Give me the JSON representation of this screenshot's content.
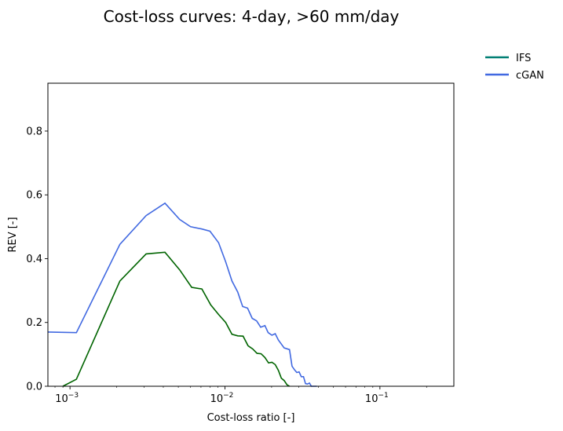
{
  "chart_data": {
    "type": "line",
    "title": "Cost-loss curves: 4-day, >60 mm/day",
    "xlabel": "Cost-loss ratio [-]",
    "ylabel": "REV [-]",
    "xscale": "log",
    "xlim": [
      0.00072,
      0.3
    ],
    "ylim": [
      0.0,
      0.95
    ],
    "grid": false,
    "legend_position": "outside top-right",
    "x_ticks": [
      {
        "base": "10",
        "exp": "−3",
        "value": 0.001
      },
      {
        "base": "10",
        "exp": "−2",
        "value": 0.01
      },
      {
        "base": "10",
        "exp": "−1",
        "value": 0.1
      }
    ],
    "y_ticks": [
      "0.0",
      "0.2",
      "0.4",
      "0.6",
      "0.8"
    ],
    "legend": [
      {
        "label": "IFS",
        "color": "#007f73"
      },
      {
        "label": "cGAN",
        "color": "#4169e1"
      }
    ],
    "series": [
      {
        "name": "cGAN",
        "color": "#4169e1",
        "x": [
          0.00072,
          0.0011,
          0.0021,
          0.0031,
          0.0041,
          0.0051,
          0.006,
          0.0071,
          0.008,
          0.0091,
          0.0101,
          0.0111,
          0.0121,
          0.013,
          0.014,
          0.015,
          0.016,
          0.017,
          0.0181,
          0.019,
          0.0201,
          0.0211,
          0.0221,
          0.0241,
          0.0261,
          0.0271,
          0.0281,
          0.0291,
          0.0301,
          0.0311,
          0.0321,
          0.0331,
          0.0341,
          0.0351,
          0.0361,
          0.0371,
          0.0381,
          0.0391
        ],
        "y": [
          0.17,
          0.168,
          0.445,
          0.535,
          0.574,
          0.523,
          0.5,
          0.493,
          0.486,
          0.45,
          0.39,
          0.33,
          0.295,
          0.25,
          0.245,
          0.213,
          0.205,
          0.185,
          0.19,
          0.168,
          0.16,
          0.165,
          0.145,
          0.12,
          0.115,
          0.063,
          0.052,
          0.043,
          0.045,
          0.03,
          0.03,
          0.008,
          0.007,
          0.01,
          0.0,
          0.0,
          0.0,
          0.0
        ]
      },
      {
        "name": "IFS",
        "color": "#006400",
        "x": [
          0.0009,
          0.0011,
          0.0021,
          0.0031,
          0.0041,
          0.0051,
          0.0061,
          0.0071,
          0.0081,
          0.0091,
          0.0101,
          0.0111,
          0.0121,
          0.0131,
          0.0141,
          0.0151,
          0.0161,
          0.0171,
          0.0181,
          0.0191,
          0.0201,
          0.0211,
          0.0221,
          0.0231,
          0.0241,
          0.0251,
          0.0261
        ],
        "y": [
          0.0,
          0.022,
          0.33,
          0.415,
          0.42,
          0.365,
          0.31,
          0.305,
          0.255,
          0.225,
          0.2,
          0.163,
          0.158,
          0.157,
          0.127,
          0.117,
          0.103,
          0.102,
          0.09,
          0.073,
          0.075,
          0.068,
          0.05,
          0.025,
          0.018,
          0.005,
          0.0
        ]
      }
    ]
  }
}
